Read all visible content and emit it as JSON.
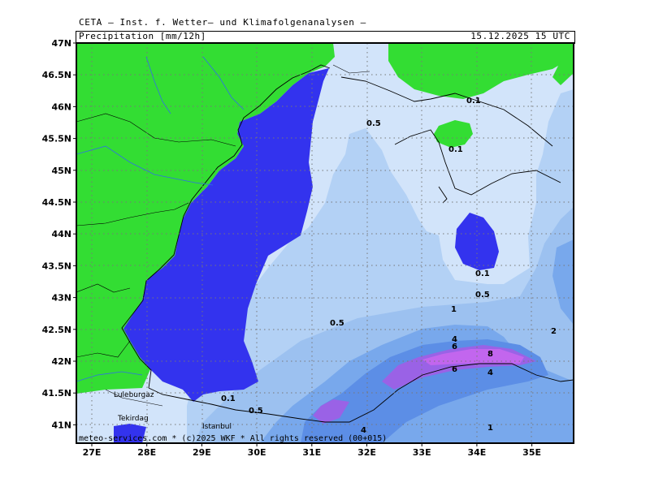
{
  "header": {
    "credit": "CETA – Inst. f. Wetter– und Klimafolgenanalysen –",
    "product": "Precipitation [mm/12h]",
    "valid_time": "15.12.2025 15 UTC"
  },
  "footer": {
    "copyright": "meteo-services.com * (c)2025 WKF * All rights reserved (00+015)"
  },
  "axes": {
    "lon_ticks": [
      "27E",
      "28E",
      "29E",
      "30E",
      "31E",
      "32E",
      "33E",
      "34E",
      "35E"
    ],
    "lat_ticks": [
      "47N",
      "46.5N",
      "46N",
      "45.5N",
      "45N",
      "44.5N",
      "44N",
      "43.5N",
      "43N",
      "42.5N",
      "42N",
      "41.5N",
      "41N"
    ]
  },
  "cities": [
    "Luleburgaz",
    "Tekirdag",
    "Istanbul"
  ],
  "contour_labels": [
    {
      "text": "0.5"
    },
    {
      "text": "0.1"
    },
    {
      "text": "0.1"
    },
    {
      "text": "0.1"
    },
    {
      "text": "0.5"
    },
    {
      "text": "1"
    },
    {
      "text": "0.5"
    },
    {
      "text": "2"
    },
    {
      "text": "4"
    },
    {
      "text": "6"
    },
    {
      "text": "8"
    },
    {
      "text": "6"
    },
    {
      "text": "4"
    },
    {
      "text": "0.1"
    },
    {
      "text": "0.5"
    },
    {
      "text": "4"
    },
    {
      "text": "1"
    }
  ],
  "colors": {
    "land_dry": "#33dd33",
    "sea_dry": "#3333ee",
    "precip_0_1": "#d2e4fa",
    "precip_0_5": "#b3d1f5",
    "precip_1": "#9cc1f0",
    "precip_2": "#78a8ec",
    "precip_4": "#5c8ee6",
    "precip_6": "#9a62e6",
    "precip_8": "#c266ee"
  }
}
